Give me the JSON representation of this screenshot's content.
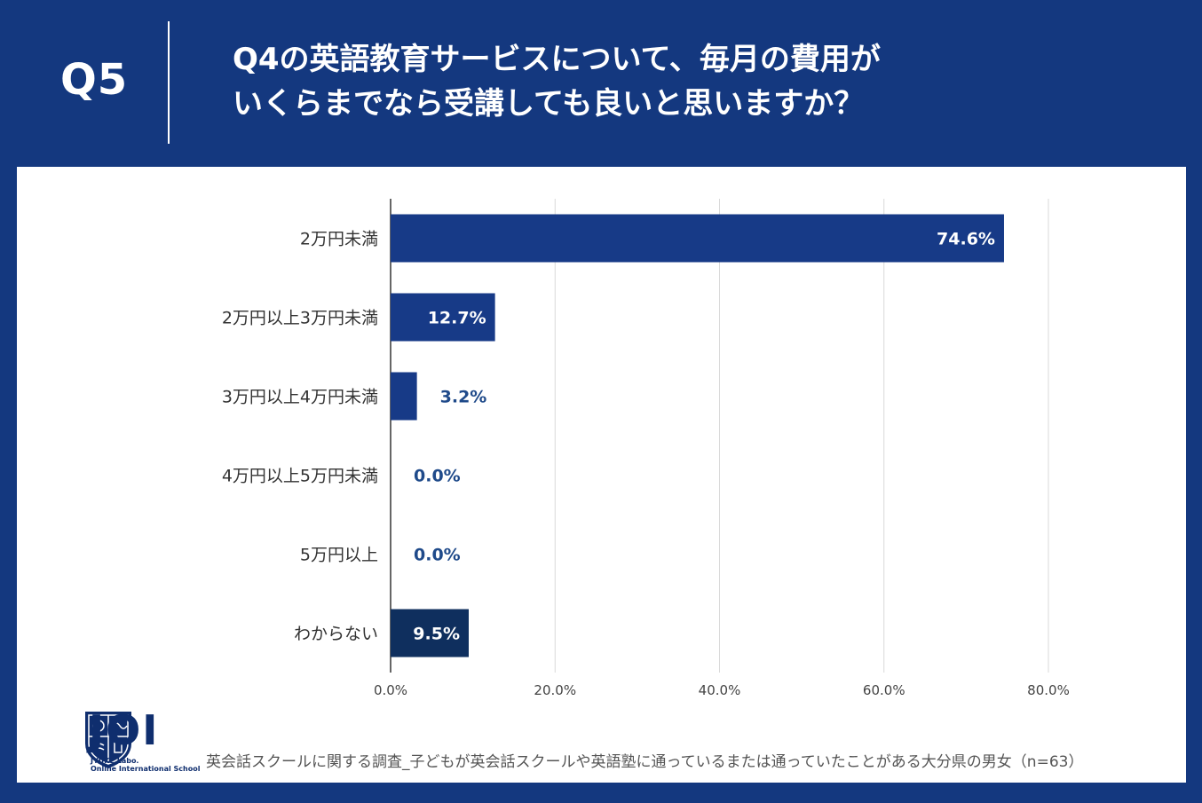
{
  "header": {
    "qnum": "Q5",
    "question_line1": "Q4の英語教育サービスについて、毎月の費用が",
    "question_line2": "いくらまでなら受講しても良いと思いますか？"
  },
  "colors": {
    "background": "#14387f",
    "bar": "#173a87",
    "bar_last": "#0f2f5e",
    "label_outside": "#1f4a8a",
    "grid": "#d9d9d9"
  },
  "chart_data": {
    "type": "bar",
    "orientation": "horizontal",
    "categories": [
      "2万円未満",
      "2万円以上3万円未満",
      "3万円以上4万円未満",
      "4万円以上5万円未満",
      "5万円以上",
      "わからない"
    ],
    "values": [
      74.6,
      12.7,
      3.2,
      0.0,
      0.0,
      9.5
    ],
    "value_labels": [
      "74.6%",
      "12.7%",
      "3.2%",
      "0.0%",
      "0.0%",
      "9.5%"
    ],
    "x_ticks": [
      0,
      20,
      40,
      60,
      80
    ],
    "x_tick_labels": [
      "0.0%",
      "20.0%",
      "40.0%",
      "60.0%",
      "80.0%"
    ],
    "xlim": [
      0,
      80
    ],
    "grid": true
  },
  "logo": {
    "name": "JOI",
    "sub1": "JYUKE Labo.",
    "sub2": "Online International School"
  },
  "source_note": "英会話スクールに関する調査_子どもが英会話スクールや英語塾に通っているまたは通っていたことがある大分県の男女（n=63）"
}
